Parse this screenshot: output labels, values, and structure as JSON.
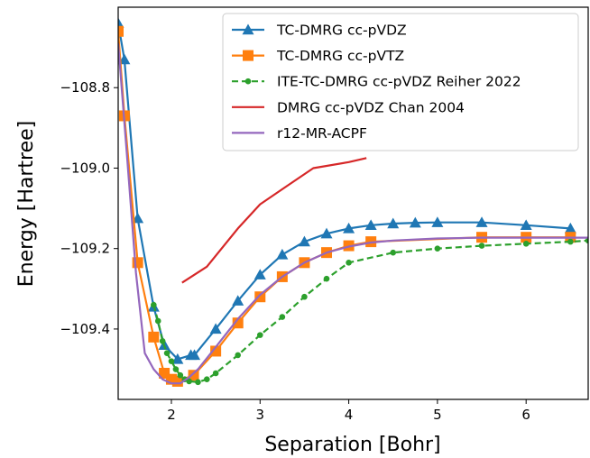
{
  "chart_data": {
    "type": "line",
    "xlabel": "Separation [Bohr]",
    "ylabel": "Energy [Hartree]",
    "xlim": [
      1.4,
      6.7
    ],
    "ylim": [
      -109.575,
      -108.6
    ],
    "xticks": [
      2,
      3,
      4,
      5,
      6
    ],
    "yticks": [
      -109.4,
      -109.2,
      -109.0,
      -108.8
    ],
    "xtick_labels": [
      "2",
      "3",
      "4",
      "5",
      "6"
    ],
    "ytick_labels": [
      "−109.4",
      "−109.2",
      "−109.0",
      "−108.8"
    ],
    "grid": false,
    "legend_placement": "upper-right",
    "series": [
      {
        "name": "TC-DMRG cc-pVDZ",
        "color": "#1f77b4",
        "style": "solid",
        "marker": "triangle",
        "x": [
          1.4,
          1.47,
          1.62,
          1.8,
          1.92,
          2.07,
          2.22,
          2.26,
          2.5,
          2.75,
          3.0,
          3.25,
          3.5,
          3.75,
          4.0,
          4.25,
          4.5,
          4.75,
          5.0,
          5.5,
          6.0,
          6.5
        ],
        "y": [
          -108.64,
          -108.73,
          -109.125,
          -109.345,
          -109.44,
          -109.475,
          -109.465,
          -109.465,
          -109.4,
          -109.33,
          -109.265,
          -109.215,
          -109.183,
          -109.163,
          -109.15,
          -109.142,
          -109.138,
          -109.136,
          -109.135,
          -109.135,
          -109.142,
          -109.15
        ]
      },
      {
        "name": "TC-DMRG cc-pVTZ",
        "color": "#ff7f0e",
        "style": "solid",
        "marker": "square",
        "x": [
          1.4,
          1.47,
          1.62,
          1.8,
          1.92,
          2.0,
          2.07,
          2.25,
          2.5,
          2.75,
          3.0,
          3.25,
          3.5,
          3.75,
          4.0,
          4.25,
          5.5,
          6.0,
          6.5
        ],
        "y": [
          -108.66,
          -108.87,
          -109.235,
          -109.42,
          -109.51,
          -109.525,
          -109.53,
          -109.515,
          -109.455,
          -109.385,
          -109.32,
          -109.27,
          -109.235,
          -109.21,
          -109.193,
          -109.183,
          -109.172,
          -109.172,
          -109.172
        ]
      },
      {
        "name": "ITE-TC-DMRG cc-pVDZ Reiher 2022",
        "color": "#2ca02c",
        "style": "dashed",
        "marker": "dot",
        "x": [
          1.8,
          1.85,
          1.9,
          1.95,
          2.0,
          2.05,
          2.1,
          2.15,
          2.2,
          2.3,
          2.4,
          2.5,
          2.75,
          3.0,
          3.25,
          3.5,
          3.75,
          4.0,
          4.5,
          5.0,
          5.5,
          6.0,
          6.5,
          6.7
        ],
        "y": [
          -109.34,
          -109.38,
          -109.43,
          -109.46,
          -109.48,
          -109.5,
          -109.515,
          -109.525,
          -109.53,
          -109.532,
          -109.525,
          -109.51,
          -109.465,
          -109.415,
          -109.37,
          -109.32,
          -109.275,
          -109.235,
          -109.21,
          -109.2,
          -109.193,
          -109.188,
          -109.183,
          -109.18
        ]
      },
      {
        "name": "DMRG cc-pVDZ Chan 2004",
        "color": "#d62728",
        "style": "solid",
        "marker": "none",
        "x": [
          2.12,
          2.4,
          2.75,
          3.0,
          3.3,
          3.6,
          4.0,
          4.2
        ],
        "y": [
          -109.285,
          -109.245,
          -109.15,
          -109.09,
          -109.045,
          -109.0,
          -108.985,
          -108.975
        ]
      },
      {
        "name": "r12-MR-ACPF",
        "color": "#9467bd",
        "style": "solid",
        "marker": "none",
        "x": [
          1.4,
          1.5,
          1.6,
          1.7,
          1.8,
          1.9,
          2.0,
          2.1,
          2.2,
          2.3,
          2.5,
          2.75,
          3.0,
          3.25,
          3.5,
          3.75,
          4.0,
          4.25,
          4.5,
          5.0,
          5.5,
          6.0,
          6.5,
          6.7
        ],
        "y": [
          -108.69,
          -108.97,
          -109.26,
          -109.46,
          -109.5,
          -109.525,
          -109.535,
          -109.535,
          -109.52,
          -109.5,
          -109.445,
          -109.375,
          -109.315,
          -109.27,
          -109.235,
          -109.21,
          -109.195,
          -109.185,
          -109.18,
          -109.175,
          -109.173,
          -109.173,
          -109.173,
          -109.173
        ]
      }
    ]
  }
}
